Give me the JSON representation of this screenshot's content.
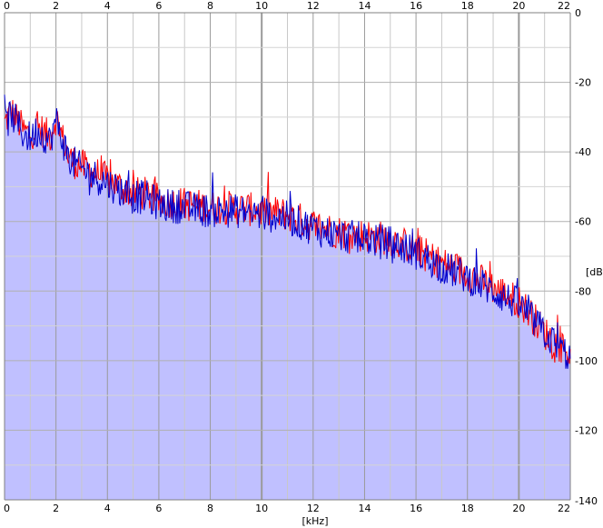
{
  "chart_data": {
    "type": "area",
    "title": "",
    "xlabel": "[kHz]",
    "ylabel": "[dB]",
    "xlim": [
      0,
      22
    ],
    "ylim": [
      -140,
      0
    ],
    "x_ticks_top": [
      "0",
      "2",
      "4",
      "6",
      "8",
      "10",
      "12",
      "14",
      "16",
      "18",
      "20",
      "22"
    ],
    "x_ticks_bottom": [
      "0",
      "2",
      "4",
      "6",
      "8",
      "10",
      "12",
      "14",
      "16",
      "18",
      "20",
      "22"
    ],
    "y_ticks": [
      "0",
      "-20",
      "-40",
      "-60",
      "-80",
      "-100",
      "-120",
      "-140"
    ],
    "grid": true,
    "legend": "none",
    "colors": {
      "background": "#ffffff",
      "plot_area": "#ffffff",
      "fill": "#c0c0ff",
      "grid": "#a0a0a0",
      "axis": "#808080",
      "series_left": "#ff0000",
      "series_right": "#0000cc"
    },
    "series": [
      {
        "color": "#ff0000",
        "x": [
          0.0,
          0.25,
          0.5,
          0.75,
          1.0,
          1.25,
          1.5,
          1.75,
          2.0,
          2.5,
          3.0,
          3.5,
          4.0,
          4.5,
          5.0,
          5.5,
          6.0,
          7.0,
          8.0,
          9.0,
          10.0,
          11.0,
          12.0,
          13.0,
          14.0,
          15.0,
          16.0,
          17.0,
          18.0,
          19.0,
          20.0,
          20.5,
          21.0,
          21.5,
          22.0
        ],
        "values": [
          -32,
          -28,
          -31,
          -34,
          -35,
          -33,
          -34,
          -36,
          -30,
          -42,
          -44,
          -46,
          -48,
          -50,
          -52,
          -52,
          -54,
          -55,
          -56,
          -56,
          -57,
          -58,
          -61,
          -63,
          -64,
          -65,
          -68,
          -72,
          -75,
          -79,
          -83,
          -87,
          -92,
          -95,
          -98
        ]
      },
      {
        "color": "#0000cc",
        "x": [
          0.0,
          0.25,
          0.5,
          0.75,
          1.0,
          1.25,
          1.5,
          1.75,
          2.0,
          2.5,
          3.0,
          3.5,
          4.0,
          4.5,
          5.0,
          5.5,
          6.0,
          7.0,
          8.0,
          9.0,
          10.0,
          11.0,
          12.0,
          13.0,
          14.0,
          15.0,
          16.0,
          17.0,
          18.0,
          19.0,
          20.0,
          20.5,
          21.0,
          21.5,
          22.0
        ],
        "values": [
          -33,
          -29,
          -32,
          -35,
          -36,
          -34,
          -35,
          -37,
          -31,
          -42,
          -45,
          -47,
          -49,
          -51,
          -53,
          -53,
          -55,
          -56,
          -57,
          -57,
          -58,
          -59,
          -62,
          -64,
          -65,
          -66,
          -69,
          -73,
          -76,
          -80,
          -84,
          -88,
          -92,
          -96,
          -99
        ]
      }
    ]
  }
}
